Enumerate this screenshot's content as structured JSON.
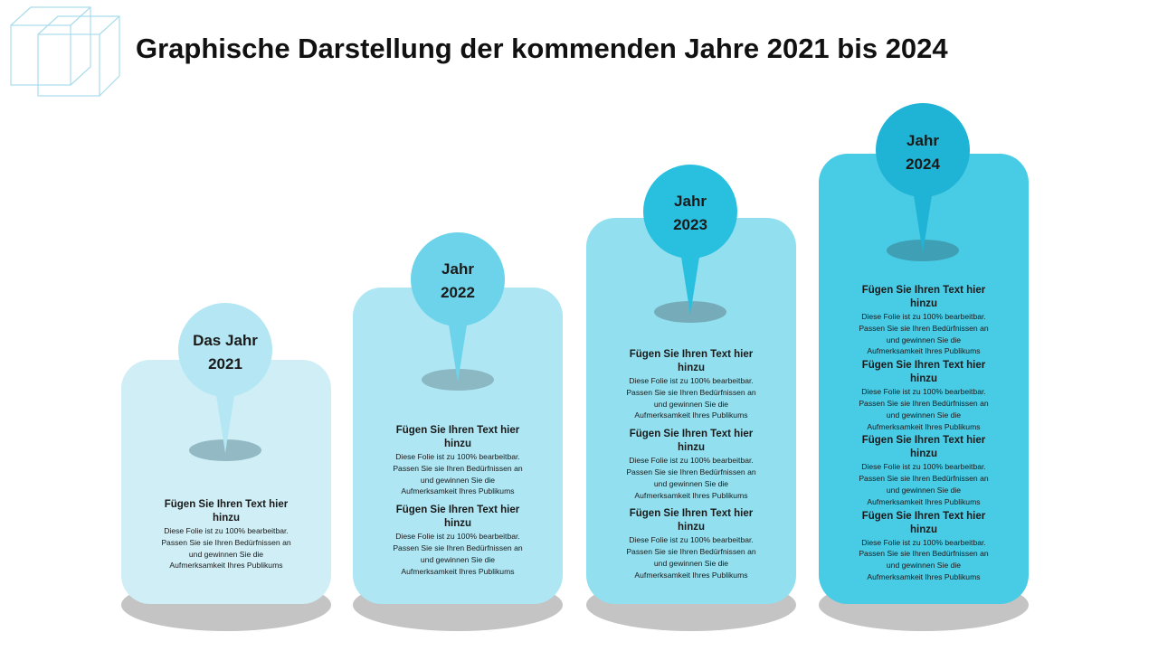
{
  "title": "Graphische Darstellung der kommenden Jahre 2021 bis 2024",
  "entry_heading": "Fügen Sie Ihren Text hier hinzu",
  "entry_text": "Diese Folie ist zu 100% bearbeitbar. Passen Sie sie Ihren Bedürfnissen an und gewinnen Sie die Aufmerksamkeit Ihres Publikums",
  "colors": {
    "card_2021": "#cfeef6",
    "pin_2021": "#b4e7f3",
    "card_2022": "#aee6f3",
    "pin_2022": "#6dd3ea",
    "card_2023": "#92e0ef",
    "pin_2023": "#29c0e0",
    "card_2024": "#48cbe5",
    "pin_2024": "#1fb3d5",
    "shadow": "#c4c4c4",
    "pin_base": "#7fa8b3"
  },
  "steps": [
    {
      "label_line1": "Das Jahr",
      "label_line2": "2021",
      "entries": [
        {
          "heading_l1": "Fügen Sie Ihren Text hier",
          "heading_l2": "hinzu",
          "t1": "Diese Folie ist zu 100% bearbeitbar.",
          "t2": "Passen Sie sie Ihren Bedürfnissen an",
          "t3": "und gewinnen Sie die",
          "t4": "Aufmerksamkeit Ihres Publikums"
        }
      ]
    },
    {
      "label_line1": "Jahr",
      "label_line2": "2022",
      "entries": [
        {
          "heading_l1": "Fügen Sie Ihren Text hier",
          "heading_l2": "hinzu",
          "t1": "Diese Folie ist zu 100% bearbeitbar.",
          "t2": "Passen Sie sie Ihren Bedürfnissen an",
          "t3": "und gewinnen Sie die",
          "t4": "Aufmerksamkeit Ihres Publikums"
        },
        {
          "heading_l1": "Fügen Sie Ihren Text hier",
          "heading_l2": "hinzu",
          "t1": "Diese Folie ist zu 100% bearbeitbar.",
          "t2": "Passen Sie sie Ihren Bedürfnissen an",
          "t3": "und gewinnen Sie die",
          "t4": "Aufmerksamkeit Ihres Publikums"
        }
      ]
    },
    {
      "label_line1": "Jahr",
      "label_line2": "2023",
      "entries": [
        {
          "heading_l1": "Fügen Sie Ihren Text hier",
          "heading_l2": "hinzu",
          "t1": "Diese Folie ist zu 100% bearbeitbar.",
          "t2": "Passen Sie sie Ihren Bedürfnissen an",
          "t3": "und gewinnen Sie die",
          "t4": "Aufmerksamkeit Ihres Publikums"
        },
        {
          "heading_l1": "Fügen Sie Ihren Text hier",
          "heading_l2": "hinzu",
          "t1": "Diese Folie ist zu 100% bearbeitbar.",
          "t2": "Passen Sie sie Ihren Bedürfnissen an",
          "t3": "und gewinnen Sie die",
          "t4": "Aufmerksamkeit Ihres Publikums"
        },
        {
          "heading_l1": "Fügen Sie Ihren Text hier",
          "heading_l2": "hinzu",
          "t1": "Diese Folie ist zu 100% bearbeitbar.",
          "t2": "Passen Sie sie Ihren Bedürfnissen an",
          "t3": "und gewinnen Sie die",
          "t4": "Aufmerksamkeit Ihres Publikums"
        }
      ]
    },
    {
      "label_line1": "Jahr",
      "label_line2": "2024",
      "entries": [
        {
          "heading_l1": "Fügen Sie Ihren Text hier",
          "heading_l2": "hinzu",
          "t1": "Diese Folie ist zu 100% bearbeitbar.",
          "t2": "Passen Sie sie Ihren Bedürfnissen an",
          "t3": "und gewinnen Sie die",
          "t4": "Aufmerksamkeit Ihres Publikums"
        },
        {
          "heading_l1": "Fügen Sie Ihren Text hier",
          "heading_l2": "hinzu",
          "t1": "Diese Folie ist zu 100% bearbeitbar.",
          "t2": "Passen Sie sie Ihren Bedürfnissen an",
          "t3": "und gewinnen Sie die",
          "t4": "Aufmerksamkeit Ihres Publikums"
        },
        {
          "heading_l1": "Fügen Sie Ihren Text hier",
          "heading_l2": "hinzu",
          "t1": "Diese Folie ist zu 100% bearbeitbar.",
          "t2": "Passen Sie sie Ihren Bedürfnissen an",
          "t3": "und gewinnen Sie die",
          "t4": "Aufmerksamkeit Ihres Publikums"
        },
        {
          "heading_l1": "Fügen Sie Ihren Text hier",
          "heading_l2": "hinzu",
          "t1": "Diese Folie ist zu 100% bearbeitbar.",
          "t2": "Passen Sie sie Ihren Bedürfnissen an",
          "t3": "und gewinnen Sie die",
          "t4": "Aufmerksamkeit Ihres Publikums"
        }
      ]
    }
  ]
}
